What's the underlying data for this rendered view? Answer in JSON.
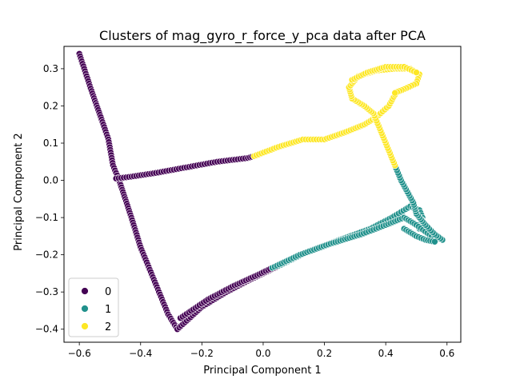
{
  "chart_data": {
    "type": "scatter",
    "title": "Clusters of mag_gyro_r_force_y_pca data after PCA",
    "xlabel": "Principal Component 1",
    "ylabel": "Principal Component 2",
    "xlim": [
      -0.65,
      0.645
    ],
    "ylim": [
      -0.435,
      0.36
    ],
    "x_ticks": [
      -0.6,
      -0.4,
      -0.2,
      0.0,
      0.2,
      0.4,
      0.6
    ],
    "x_tick_labels": [
      "−0.6",
      "−0.4",
      "−0.2",
      "0.0",
      "0.2",
      "0.4",
      "0.6"
    ],
    "y_ticks": [
      -0.4,
      -0.3,
      -0.2,
      -0.1,
      0.0,
      0.1,
      0.2,
      0.3
    ],
    "y_tick_labels": [
      "−0.4",
      "−0.3",
      "−0.2",
      "−0.1",
      "0.0",
      "0.1",
      "0.2",
      "0.3"
    ],
    "grid": false,
    "legend_position": "lower-left",
    "legend_labels": [
      "0",
      "1",
      "2"
    ],
    "colors": {
      "0": "#440154",
      "1": "#21918c",
      "2": "#fde725"
    },
    "series": [
      {
        "name": "0",
        "paths": [
          [
            [
              -0.6,
              0.34
            ],
            [
              -0.56,
              0.24
            ],
            [
              -0.53,
              0.17
            ],
            [
              -0.505,
              0.11
            ],
            [
              -0.49,
              0.04
            ],
            [
              -0.47,
              0.0
            ],
            [
              -0.45,
              -0.05
            ],
            [
              -0.43,
              -0.1
            ],
            [
              -0.4,
              -0.18
            ],
            [
              -0.37,
              -0.24
            ],
            [
              -0.34,
              -0.3
            ],
            [
              -0.31,
              -0.36
            ],
            [
              -0.28,
              -0.4
            ]
          ],
          [
            [
              -0.48,
              0.005
            ],
            [
              -0.43,
              0.01
            ],
            [
              -0.35,
              0.02
            ],
            [
              -0.25,
              0.035
            ],
            [
              -0.15,
              0.05
            ],
            [
              -0.05,
              0.06
            ],
            [
              -0.03,
              0.065
            ]
          ],
          [
            [
              -0.28,
              -0.4
            ],
            [
              -0.2,
              -0.34
            ],
            [
              -0.12,
              -0.3
            ],
            [
              -0.05,
              -0.27
            ],
            [
              0.0,
              -0.25
            ],
            [
              0.05,
              -0.23
            ]
          ],
          [
            [
              -0.27,
              -0.37
            ],
            [
              -0.18,
              -0.32
            ],
            [
              -0.1,
              -0.285
            ],
            [
              -0.02,
              -0.255
            ],
            [
              0.03,
              -0.235
            ]
          ]
        ]
      },
      {
        "name": "1",
        "paths": [
          [
            [
              0.05,
              -0.23
            ],
            [
              0.15,
              -0.19
            ],
            [
              0.25,
              -0.16
            ],
            [
              0.35,
              -0.13
            ],
            [
              0.42,
              -0.1
            ],
            [
              0.48,
              -0.07
            ],
            [
              0.51,
              -0.08
            ],
            [
              0.52,
              -0.1
            ],
            [
              0.51,
              -0.13
            ]
          ],
          [
            [
              0.03,
              -0.235
            ],
            [
              0.12,
              -0.2
            ],
            [
              0.22,
              -0.17
            ],
            [
              0.32,
              -0.145
            ],
            [
              0.4,
              -0.12
            ],
            [
              0.46,
              -0.1
            ],
            [
              0.5,
              -0.12
            ],
            [
              0.55,
              -0.15
            ],
            [
              0.585,
              -0.16
            ]
          ],
          [
            [
              0.585,
              -0.16
            ],
            [
              0.56,
              -0.145
            ],
            [
              0.53,
              -0.12
            ],
            [
              0.5,
              -0.09
            ],
            [
              0.49,
              -0.06
            ],
            [
              0.47,
              -0.03
            ],
            [
              0.45,
              0.0
            ],
            [
              0.43,
              0.04
            ]
          ],
          [
            [
              0.46,
              -0.13
            ],
            [
              0.5,
              -0.15
            ],
            [
              0.53,
              -0.16
            ],
            [
              0.56,
              -0.165
            ]
          ]
        ]
      },
      {
        "name": "2",
        "paths": [
          [
            [
              -0.03,
              0.065
            ],
            [
              0.05,
              0.09
            ],
            [
              0.13,
              0.11
            ],
            [
              0.2,
              0.11
            ],
            [
              0.27,
              0.13
            ],
            [
              0.33,
              0.15
            ],
            [
              0.37,
              0.17
            ],
            [
              0.41,
              0.2
            ],
            [
              0.43,
              0.23
            ]
          ],
          [
            [
              0.43,
              0.04
            ],
            [
              0.41,
              0.08
            ],
            [
              0.39,
              0.12
            ],
            [
              0.37,
              0.16
            ],
            [
              0.36,
              0.18
            ],
            [
              0.33,
              0.2
            ],
            [
              0.29,
              0.22
            ],
            [
              0.28,
              0.25
            ],
            [
              0.31,
              0.28
            ],
            [
              0.37,
              0.295
            ],
            [
              0.43,
              0.3
            ],
            [
              0.48,
              0.3
            ],
            [
              0.51,
              0.285
            ],
            [
              0.5,
              0.26
            ],
            [
              0.46,
              0.245
            ],
            [
              0.43,
              0.235
            ]
          ],
          [
            [
              0.29,
              0.27
            ],
            [
              0.34,
              0.29
            ],
            [
              0.4,
              0.305
            ],
            [
              0.46,
              0.305
            ],
            [
              0.5,
              0.29
            ]
          ]
        ]
      }
    ]
  }
}
